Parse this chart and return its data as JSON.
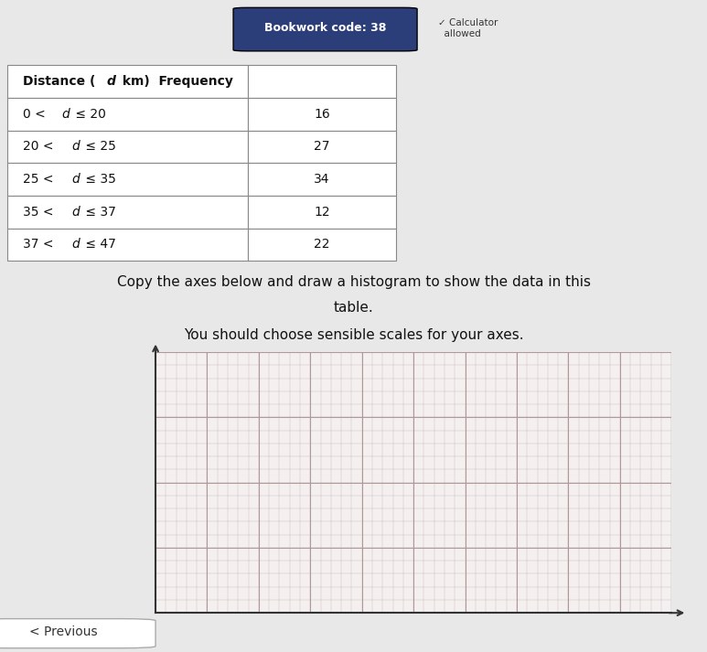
{
  "bookwork_code": "38",
  "table_header": [
    "Distance (d km)",
    "Frequency"
  ],
  "table_rows": [
    [
      "0 < d ≤ 20",
      "16"
    ],
    [
      "20 < d ≤ 25",
      "27"
    ],
    [
      "25 < d ≤ 35",
      "34"
    ],
    [
      "35 < d ≤ 37",
      "12"
    ],
    [
      "37 < d ≤ 47",
      "22"
    ]
  ],
  "instruction_line1": "Copy the axes below and draw a histogram to show the data in this",
  "instruction_line2": "table.",
  "instruction_line3": "You should choose sensible scales for your axes.",
  "bg_color": "#e8e8e8",
  "table_bg": "#ffffff",
  "grid_bg": "#f5f0f0",
  "grid_color": "#c8b8b8",
  "bookwork_bg": "#2c3e7a",
  "bookwork_text": "#ffffff"
}
